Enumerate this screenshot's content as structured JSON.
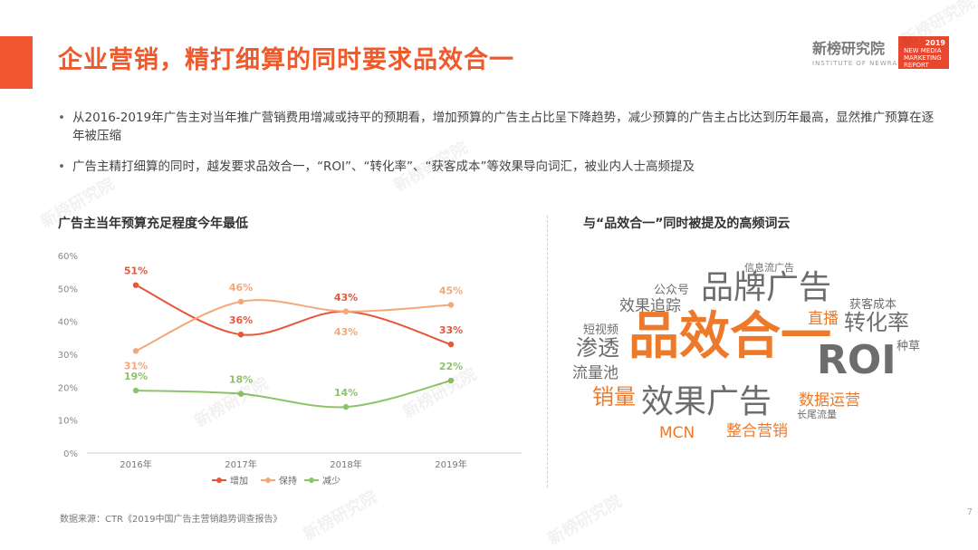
{
  "header": {
    "title": "企业营销，精打细算的同时要求品效合一",
    "brand_name": "新榜研究院",
    "brand_sub": "INSTITUTE OF NEWRANK",
    "report_year": "2019",
    "report_text": "NEW MEDIA MARKETING REPORT"
  },
  "bullets": [
    "从2016-2019年广告主对当年推广营销费用增减或持平的预期看，增加预算的广告主占比呈下降趋势，减少预算的广告主占比达到历年最高，显然推广预算在逐年被压缩",
    "广告主精打细算的同时，越发要求品效合一，“ROI”、“转化率”、“获客成本”等效果导向词汇，被业内人士高频提及"
  ],
  "left_section": {
    "title": "广告主当年预算充足程度今年最低"
  },
  "right_section": {
    "title": "与“品效合一”同时被提及的高频词云"
  },
  "chart_data": {
    "type": "line",
    "categories": [
      "2016年",
      "2017年",
      "2018年",
      "2019年"
    ],
    "y_ticks": [
      "0%",
      "10%",
      "20%",
      "30%",
      "40%",
      "50%",
      "60%"
    ],
    "ylim": [
      0,
      60
    ],
    "grid": false,
    "legend_position": "bottom",
    "series": [
      {
        "name": "增加",
        "color": "#e8563a",
        "values": [
          51,
          36,
          43,
          33
        ],
        "labels": [
          "51%",
          "36%",
          "43%",
          "33%"
        ]
      },
      {
        "name": "保持",
        "color": "#f4a87a",
        "values": [
          31,
          46,
          43,
          45
        ],
        "labels": [
          "31%",
          "46%",
          "43%",
          "45%"
        ]
      },
      {
        "name": "减少",
        "color": "#8cc46a",
        "values": [
          19,
          18,
          14,
          22
        ],
        "labels": [
          "19%",
          "18%",
          "14%",
          "22%"
        ]
      }
    ]
  },
  "word_cloud": [
    {
      "text": "品效合一",
      "color": "#ec7a2a",
      "size": "xl"
    },
    {
      "text": "ROI",
      "color": "#6d6d6d",
      "size": "l"
    },
    {
      "text": "品牌广告",
      "color": "#6d6d6d",
      "size": "m"
    },
    {
      "text": "效果广告",
      "color": "#6d6d6d",
      "size": "m"
    },
    {
      "text": "转化率",
      "color": "#6d6d6d",
      "size": "s"
    },
    {
      "text": "渗透",
      "color": "#6d6d6d",
      "size": "s"
    },
    {
      "text": "销量",
      "color": "#ec7a2a",
      "size": "s"
    },
    {
      "text": "效果追踪",
      "color": "#6d6d6d",
      "size": "xs"
    },
    {
      "text": "流量池",
      "color": "#6d6d6d",
      "size": "xs"
    },
    {
      "text": "直播",
      "color": "#ec7a2a",
      "size": "xs"
    },
    {
      "text": "数据运营",
      "color": "#ec7a2a",
      "size": "xs"
    },
    {
      "text": "整合营销",
      "color": "#ec7a2a",
      "size": "xs"
    },
    {
      "text": "MCN",
      "color": "#ec7a2a",
      "size": "xs"
    },
    {
      "text": "公众号",
      "color": "#6d6d6d",
      "size": "xxs"
    },
    {
      "text": "获客成本",
      "color": "#6d6d6d",
      "size": "xxs"
    },
    {
      "text": "种草",
      "color": "#6d6d6d",
      "size": "xxs"
    },
    {
      "text": "短视频",
      "color": "#6d6d6d",
      "size": "xxs"
    },
    {
      "text": "信息流广告",
      "color": "#6d6d6d",
      "size": "xxxs"
    },
    {
      "text": "长尾流量",
      "color": "#6d6d6d",
      "size": "xxxs"
    }
  ],
  "footer": {
    "source": "数据来源：CTR《2019中国广告主营销趋势调查报告》",
    "page_number": "7"
  },
  "watermark_text": "新榜研究院"
}
